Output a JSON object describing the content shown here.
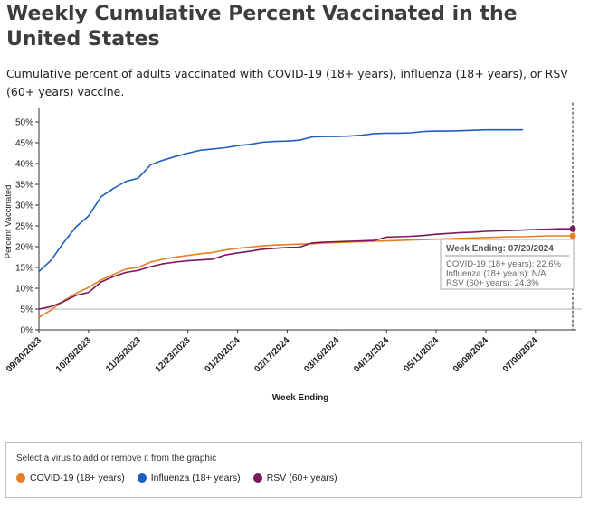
{
  "header": {
    "title": "Weekly Cumulative Percent Vaccinated in the United States",
    "subtitle": "Cumulative percent of adults vaccinated with COVID-19 (18+ years), influenza (18+ years), or RSV (60+ years) vaccine."
  },
  "chart_data": {
    "type": "line",
    "title": "Weekly Cumulative Percent Vaccinated in the United States",
    "xlabel": "Week Ending",
    "ylabel": "Percent Vaccinated",
    "ylim": [
      0,
      52
    ],
    "yticks": [
      "0%",
      "5%",
      "10%",
      "15%",
      "20%",
      "25%",
      "30%",
      "35%",
      "40%",
      "45%",
      "50%"
    ],
    "ytick_values": [
      0,
      5,
      10,
      15,
      20,
      25,
      30,
      35,
      40,
      45,
      50
    ],
    "reference_line": 5,
    "xticks": [
      "09/30/2023",
      "10/28/2023",
      "11/25/2023",
      "12/23/2023",
      "01/20/2024",
      "02/17/2024",
      "03/16/2024",
      "04/13/2024",
      "05/11/2024",
      "06/08/2024",
      "07/06/2024"
    ],
    "xtick_week_index": [
      0,
      4,
      8,
      12,
      16,
      20,
      24,
      28,
      32,
      36,
      40
    ],
    "x_domain_weeks": [
      0,
      43
    ],
    "grid": false,
    "series": [
      {
        "name": "COVID-19 (18+ years)",
        "color": "#e67e22",
        "values": [
          3.0,
          4.8,
          7.0,
          8.8,
          10.2,
          12.0,
          13.3,
          14.6,
          15.0,
          16.3,
          17.0,
          17.5,
          17.9,
          18.3,
          18.6,
          19.2,
          19.6,
          19.9,
          20.2,
          20.4,
          20.5,
          20.6,
          20.7,
          20.9,
          21.0,
          21.1,
          21.2,
          21.3,
          21.4,
          21.5,
          21.6,
          21.7,
          21.8,
          21.9,
          22.0,
          22.1,
          22.2,
          22.3,
          22.4,
          22.4,
          22.5,
          22.6,
          22.6,
          22.6
        ]
      },
      {
        "name": "Influenza (18+ years)",
        "color": "#1f5fbf",
        "values": [
          14.0,
          16.8,
          21.0,
          24.8,
          27.4,
          32.0,
          34.0,
          35.7,
          36.5,
          39.7,
          40.8,
          41.7,
          42.5,
          43.2,
          43.5,
          43.8,
          44.3,
          44.6,
          45.1,
          45.3,
          45.4,
          45.6,
          46.4,
          46.5,
          46.5,
          46.6,
          46.8,
          47.2,
          47.3,
          47.3,
          47.4,
          47.7,
          47.8,
          47.8,
          47.9,
          48.0,
          48.1,
          48.1,
          48.1,
          48.1
        ]
      },
      {
        "name": "RSV (60+ years)",
        "color": "#7a1a5e",
        "values": [
          5.0,
          5.6,
          6.8,
          8.3,
          9.0,
          11.5,
          12.8,
          13.8,
          14.3,
          15.2,
          15.9,
          16.3,
          16.6,
          16.8,
          17.0,
          18.0,
          18.5,
          18.9,
          19.4,
          19.6,
          19.8,
          19.9,
          20.9,
          21.1,
          21.2,
          21.3,
          21.4,
          21.5,
          22.3,
          22.4,
          22.5,
          22.7,
          23.0,
          23.2,
          23.4,
          23.5,
          23.7,
          23.8,
          23.9,
          24.0,
          24.1,
          24.2,
          24.3,
          24.3
        ]
      }
    ]
  },
  "tooltip": {
    "header": "Week Ending: 07/20/2024",
    "rows": [
      {
        "label": "COVID-19 (18+ years):",
        "value": "22.6%"
      },
      {
        "label": "Influenza (18+ years):",
        "value": "N/A"
      },
      {
        "label": "RSV (60+ years):",
        "value": "24.3%"
      }
    ]
  },
  "legend": {
    "hint": "Select a virus to add or remove it from the graphic",
    "items": [
      {
        "label": "COVID-19 (18+ years)",
        "color": "#e67e22"
      },
      {
        "label": "Influenza (18+ years)",
        "color": "#1f5fbf"
      },
      {
        "label": "RSV (60+ years)",
        "color": "#7a1a5e"
      }
    ]
  }
}
